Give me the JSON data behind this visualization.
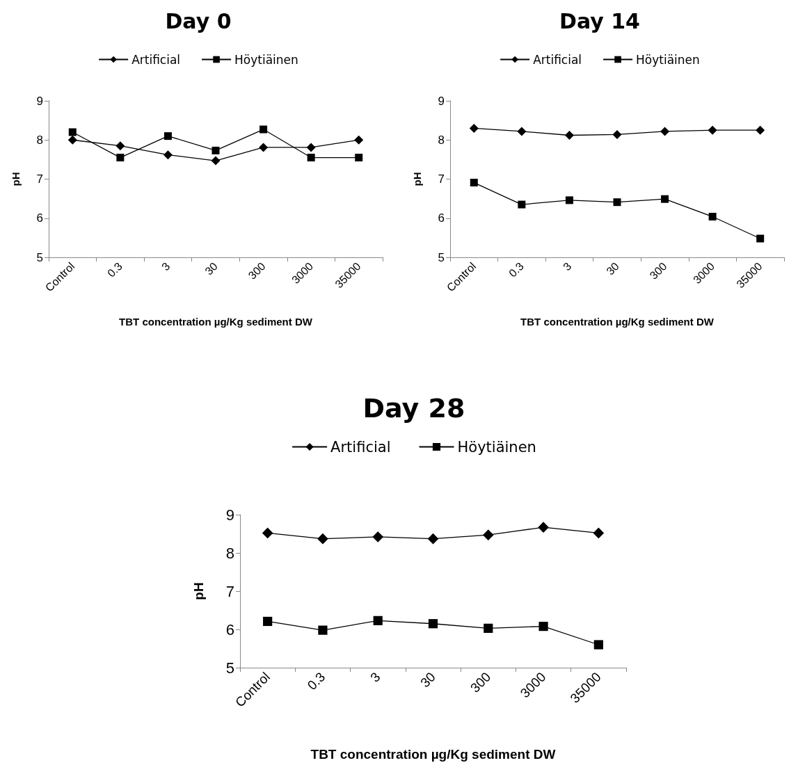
{
  "chart_data": [
    {
      "type": "line",
      "title": "Day 0",
      "xlabel": "TBT concentration µg/Kg sediment DW",
      "ylabel": "pH",
      "categories": [
        "Control",
        "0.3",
        "3",
        "30",
        "300",
        "3000",
        "35000"
      ],
      "ylim": [
        5,
        9
      ],
      "yticks": [
        5,
        6,
        7,
        8,
        9
      ],
      "grid": false,
      "legend": "top",
      "line_style": "solid",
      "series": [
        {
          "name": "Artificial",
          "color": "#000000",
          "marker": "diamond",
          "values": [
            8.0,
            7.85,
            7.62,
            7.47,
            7.81,
            7.81,
            8.0
          ]
        },
        {
          "name": "Höytiäinen",
          "color": "#000000",
          "marker": "square",
          "values": [
            8.2,
            7.55,
            8.1,
            7.73,
            8.27,
            7.55,
            7.55
          ]
        }
      ]
    },
    {
      "type": "line",
      "title": "Day 14",
      "xlabel": "TBT concentration µg/Kg sediment DW",
      "ylabel": "pH",
      "categories": [
        "Control",
        "0.3",
        "3",
        "30",
        "300",
        "3000",
        "35000"
      ],
      "ylim": [
        5,
        9
      ],
      "yticks": [
        5,
        6,
        7,
        8,
        9
      ],
      "grid": false,
      "legend": "top",
      "line_style": "solid",
      "series": [
        {
          "name": "Artificial",
          "color": "#000000",
          "marker": "diamond",
          "values": [
            8.3,
            8.22,
            8.12,
            8.14,
            8.22,
            8.25,
            8.25
          ]
        },
        {
          "name": "Höytiäinen",
          "color": "#000000",
          "marker": "square",
          "values": [
            6.91,
            6.35,
            6.46,
            6.41,
            6.49,
            6.04,
            5.48
          ]
        }
      ]
    },
    {
      "type": "line",
      "title": "Day 28",
      "xlabel": "TBT concentration µg/Kg sediment DW",
      "ylabel": "pH",
      "categories": [
        "Control",
        "0.3",
        "3",
        "30",
        "300",
        "3000",
        "35000"
      ],
      "ylim": [
        5,
        9
      ],
      "yticks": [
        5,
        6,
        7,
        8,
        9
      ],
      "grid": false,
      "legend": "top",
      "line_style": "solid",
      "series": [
        {
          "name": "Artificial",
          "color": "#000000",
          "marker": "diamond",
          "values": [
            8.52,
            8.37,
            8.42,
            8.37,
            8.47,
            8.67,
            8.52
          ]
        },
        {
          "name": "Höytiäinen",
          "color": "#000000",
          "marker": "square",
          "values": [
            6.21,
            5.98,
            6.23,
            6.15,
            6.03,
            6.08,
            5.6
          ]
        }
      ]
    }
  ]
}
